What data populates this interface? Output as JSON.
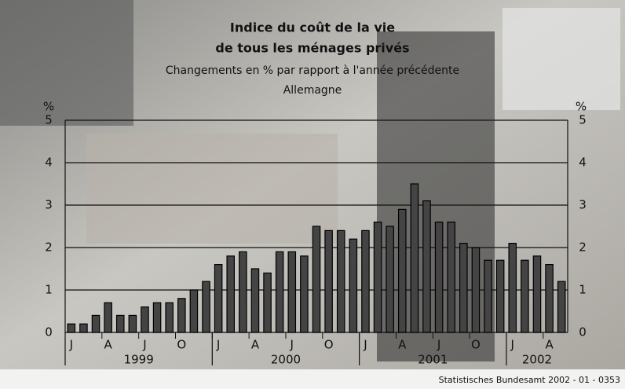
{
  "chart_data": {
    "type": "bar",
    "title_lines": [
      "Indice du coût de la vie",
      "de tous les ménages privés"
    ],
    "subtitle": "Changements en % par rapport à l'année précédente",
    "region": "Allemagne",
    "y_unit": "%",
    "source": "Statistisches Bundesamt 2002 - 01 - 0353",
    "categories": [
      "J",
      null,
      null,
      "A",
      null,
      null,
      "J",
      null,
      null,
      "O",
      null,
      null,
      "J",
      null,
      null,
      "A",
      null,
      null,
      "J",
      null,
      null,
      "O",
      null,
      null,
      "J",
      null,
      null,
      "A",
      null,
      null,
      "J",
      null,
      null,
      "O",
      null,
      null,
      "J",
      null,
      null,
      "A",
      null
    ],
    "years": [
      "1999",
      "2000",
      "2001",
      "2002"
    ],
    "values": [
      0.2,
      0.2,
      0.4,
      0.7,
      0.4,
      0.4,
      0.6,
      0.7,
      0.7,
      0.8,
      1.0,
      1.2,
      1.6,
      1.8,
      1.9,
      1.5,
      1.4,
      1.9,
      1.9,
      1.8,
      2.5,
      2.4,
      2.4,
      2.2,
      2.4,
      2.6,
      2.5,
      2.9,
      3.5,
      3.1,
      2.6,
      2.6,
      2.1,
      2.0,
      1.7,
      1.7,
      2.1,
      1.7,
      1.8,
      1.6,
      1.2
    ],
    "color": "#444444",
    "ylim": [
      0,
      5
    ],
    "yticks": [
      0,
      1,
      2,
      3,
      4,
      5
    ],
    "grid": true
  }
}
